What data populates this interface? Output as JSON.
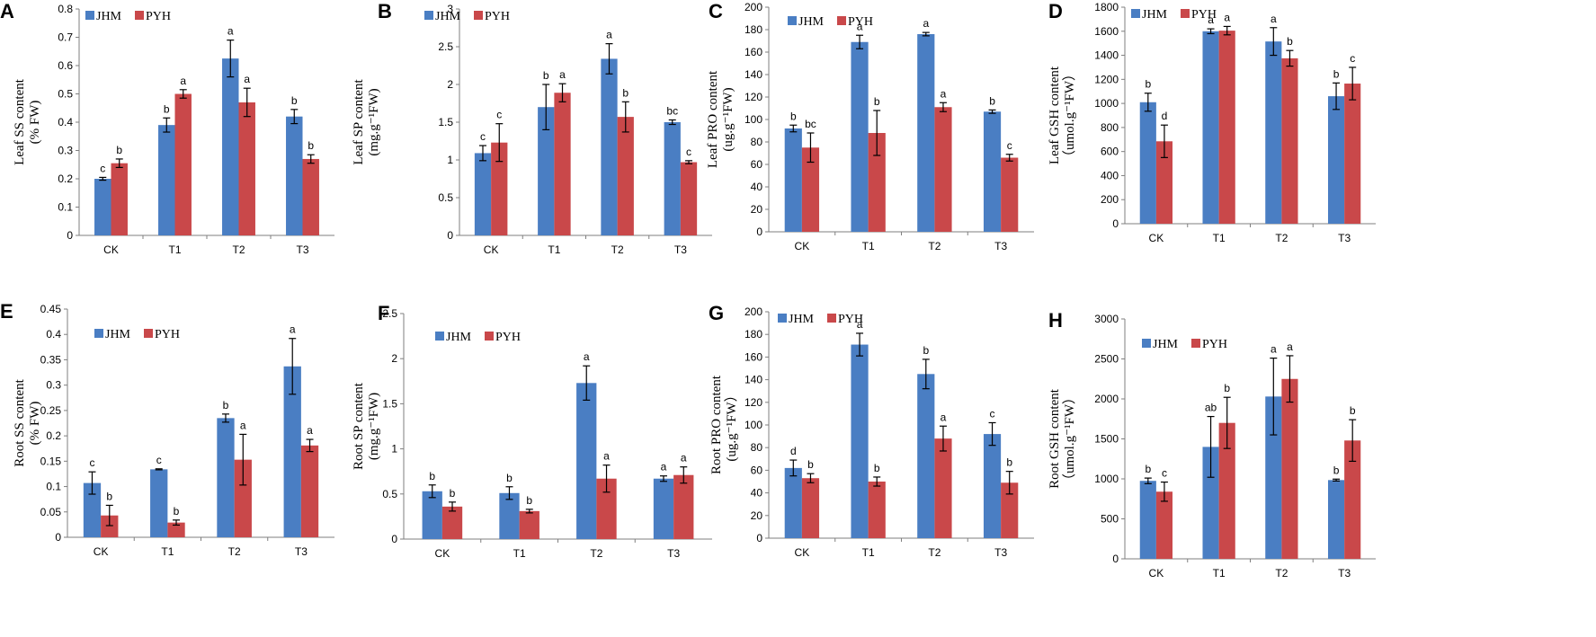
{
  "figure": {
    "legend": [
      "JHM",
      "PYH"
    ],
    "colors": {
      "JHM": "#4a7ec3",
      "PYH": "#c9484a",
      "axis": "#7f7f7f",
      "error": "#000000"
    }
  },
  "chart_data": [
    {
      "type": "bar",
      "panel": "A",
      "ylabel": [
        "Leaf SS content",
        "(% FW)"
      ],
      "categories": [
        "CK",
        "T1",
        "T2",
        "T3"
      ],
      "ylim": [
        0,
        0.8
      ],
      "step": 0.1,
      "ticks": [
        "0",
        "0.1",
        "0.2",
        "0.3",
        "0.4",
        "0.5",
        "0.6",
        "0.7",
        "0.8"
      ],
      "series": [
        {
          "name": "JHM",
          "values": [
            0.2,
            0.39,
            0.625,
            0.42
          ],
          "errors": [
            0.005,
            0.025,
            0.065,
            0.025
          ],
          "letters": [
            "c",
            "b",
            "a",
            "b"
          ]
        },
        {
          "name": "PYH",
          "values": [
            0.255,
            0.5,
            0.47,
            0.27
          ],
          "errors": [
            0.015,
            0.015,
            0.05,
            0.015
          ],
          "letters": [
            "b",
            "a",
            "a",
            "b"
          ]
        }
      ]
    },
    {
      "type": "bar",
      "panel": "B",
      "ylabel": [
        "Leaf SP content",
        "(mg.g⁻¹FW)"
      ],
      "categories": [
        "CK",
        "T1",
        "T2",
        "T3"
      ],
      "ylim": [
        0,
        3
      ],
      "step": 0.5,
      "ticks": [
        "0",
        "0.5",
        "1",
        "1.5",
        "2",
        "2.5",
        "3"
      ],
      "series": [
        {
          "name": "JHM",
          "values": [
            1.09,
            1.7,
            2.34,
            1.5
          ],
          "errors": [
            0.1,
            0.3,
            0.2,
            0.03
          ],
          "letters": [
            "c",
            "b",
            "a",
            "bc"
          ]
        },
        {
          "name": "PYH",
          "values": [
            1.23,
            1.89,
            1.57,
            0.97
          ],
          "errors": [
            0.25,
            0.12,
            0.2,
            0.02
          ],
          "letters": [
            "c",
            "a",
            "b",
            "c"
          ]
        }
      ]
    },
    {
      "type": "bar",
      "panel": "C",
      "ylabel": [
        "Leaf PRO content",
        "(ug.g⁻¹FW)"
      ],
      "categories": [
        "CK",
        "T1",
        "T2",
        "T3"
      ],
      "ylim": [
        0,
        200
      ],
      "step": 20,
      "ticks": [
        "0",
        "20",
        "40",
        "60",
        "80",
        "100",
        "120",
        "140",
        "160",
        "180",
        "200"
      ],
      "series": [
        {
          "name": "JHM",
          "values": [
            92,
            169,
            176,
            107
          ],
          "errors": [
            3,
            6,
            1.5,
            1.5
          ],
          "letters": [
            "b",
            "a",
            "a",
            "b"
          ]
        },
        {
          "name": "PYH",
          "values": [
            75,
            88,
            111,
            66
          ],
          "errors": [
            13,
            20,
            4,
            3
          ],
          "letters": [
            "bc",
            "b",
            "a",
            "c"
          ]
        }
      ]
    },
    {
      "type": "bar",
      "panel": "D",
      "ylabel": [
        "Leaf GSH content",
        "（umol.g⁻¹FW）"
      ],
      "categories": [
        "CK",
        "T1",
        "T2",
        "T3"
      ],
      "ylim": [
        0,
        1800
      ],
      "step": 200,
      "ticks": [
        "0",
        "200",
        "400",
        "600",
        "800",
        "1000",
        "1200",
        "1400",
        "1600",
        "1800"
      ],
      "series": [
        {
          "name": "JHM",
          "values": [
            1010,
            1600,
            1515,
            1060
          ],
          "errors": [
            75,
            20,
            115,
            110
          ],
          "letters": [
            "b",
            "a",
            "a",
            "b"
          ]
        },
        {
          "name": "PYH",
          "values": [
            685,
            1605,
            1375,
            1165
          ],
          "errors": [
            135,
            35,
            65,
            135
          ],
          "letters": [
            "d",
            "a",
            "b",
            "c"
          ]
        }
      ]
    },
    {
      "type": "bar",
      "panel": "E",
      "ylabel": [
        "Root SS content",
        "(% FW)"
      ],
      "categories": [
        "CK",
        "T1",
        "T2",
        "T3"
      ],
      "ylim": [
        0,
        0.45
      ],
      "step": 0.05,
      "ticks": [
        "0",
        "0.05",
        "0.1",
        "0.15",
        "0.2",
        "0.25",
        "0.3",
        "0.35",
        "0.4",
        "0.45"
      ],
      "series": [
        {
          "name": "JHM",
          "values": [
            0.107,
            0.134,
            0.235,
            0.337
          ],
          "errors": [
            0.022,
            0.001,
            0.008,
            0.055
          ],
          "letters": [
            "c",
            "c",
            "b",
            "a"
          ]
        },
        {
          "name": "PYH",
          "values": [
            0.043,
            0.029,
            0.153,
            0.181
          ],
          "errors": [
            0.02,
            0.005,
            0.05,
            0.012
          ],
          "letters": [
            "b",
            "b",
            "a",
            "a"
          ]
        }
      ]
    },
    {
      "type": "bar",
      "panel": "F",
      "ylabel": [
        "Root  SP content",
        "(mg.g⁻¹FW)"
      ],
      "categories": [
        "CK",
        "T1",
        "T2",
        "T3"
      ],
      "ylim": [
        0,
        2.5
      ],
      "step": 0.5,
      "ticks": [
        "0",
        "0.5",
        "1",
        "1.5",
        "2",
        "2.5"
      ],
      "series": [
        {
          "name": "JHM",
          "values": [
            0.53,
            0.51,
            1.73,
            0.67
          ],
          "errors": [
            0.07,
            0.07,
            0.19,
            0.03
          ],
          "letters": [
            "b",
            "b",
            "a",
            "a"
          ]
        },
        {
          "name": "PYH",
          "values": [
            0.36,
            0.31,
            0.67,
            0.71
          ],
          "errors": [
            0.05,
            0.02,
            0.15,
            0.09
          ],
          "letters": [
            "b",
            "b",
            "a",
            "a"
          ]
        }
      ]
    },
    {
      "type": "bar",
      "panel": "G",
      "ylabel": [
        "Root  PRO content",
        "(ug.g⁻¹FW）"
      ],
      "categories": [
        "CK",
        "T1",
        "T2",
        "T3"
      ],
      "ylim": [
        0,
        200
      ],
      "step": 20,
      "ticks": [
        "0",
        "20",
        "40",
        "60",
        "80",
        "100",
        "120",
        "140",
        "160",
        "180",
        "200"
      ],
      "series": [
        {
          "name": "JHM",
          "values": [
            62,
            171,
            145,
            92
          ],
          "errors": [
            7,
            10,
            13,
            10
          ],
          "letters": [
            "d",
            "a",
            "b",
            "c"
          ]
        },
        {
          "name": "PYH",
          "values": [
            53,
            50,
            88,
            49
          ],
          "errors": [
            4,
            4,
            11,
            10
          ],
          "letters": [
            "b",
            "b",
            "a",
            "b"
          ]
        }
      ]
    },
    {
      "type": "bar",
      "panel": "H",
      "ylabel": [
        "Root GSH content",
        "（umol.g⁻¹FW）"
      ],
      "categories": [
        "CK",
        "T1",
        "T2",
        "T3"
      ],
      "ylim": [
        0,
        3000
      ],
      "step": 500,
      "ticks": [
        "0",
        "500",
        "1000",
        "1500",
        "2000",
        "2500",
        "3000"
      ],
      "series": [
        {
          "name": "JHM",
          "values": [
            975,
            1400,
            2030,
            985
          ],
          "errors": [
            35,
            380,
            480,
            12
          ],
          "letters": [
            "b",
            "ab",
            "a",
            "b"
          ]
        },
        {
          "name": "PYH",
          "values": [
            840,
            1700,
            2250,
            1480
          ],
          "errors": [
            120,
            320,
            290,
            260
          ],
          "letters": [
            "c",
            "b",
            "a",
            "b"
          ]
        }
      ]
    }
  ]
}
